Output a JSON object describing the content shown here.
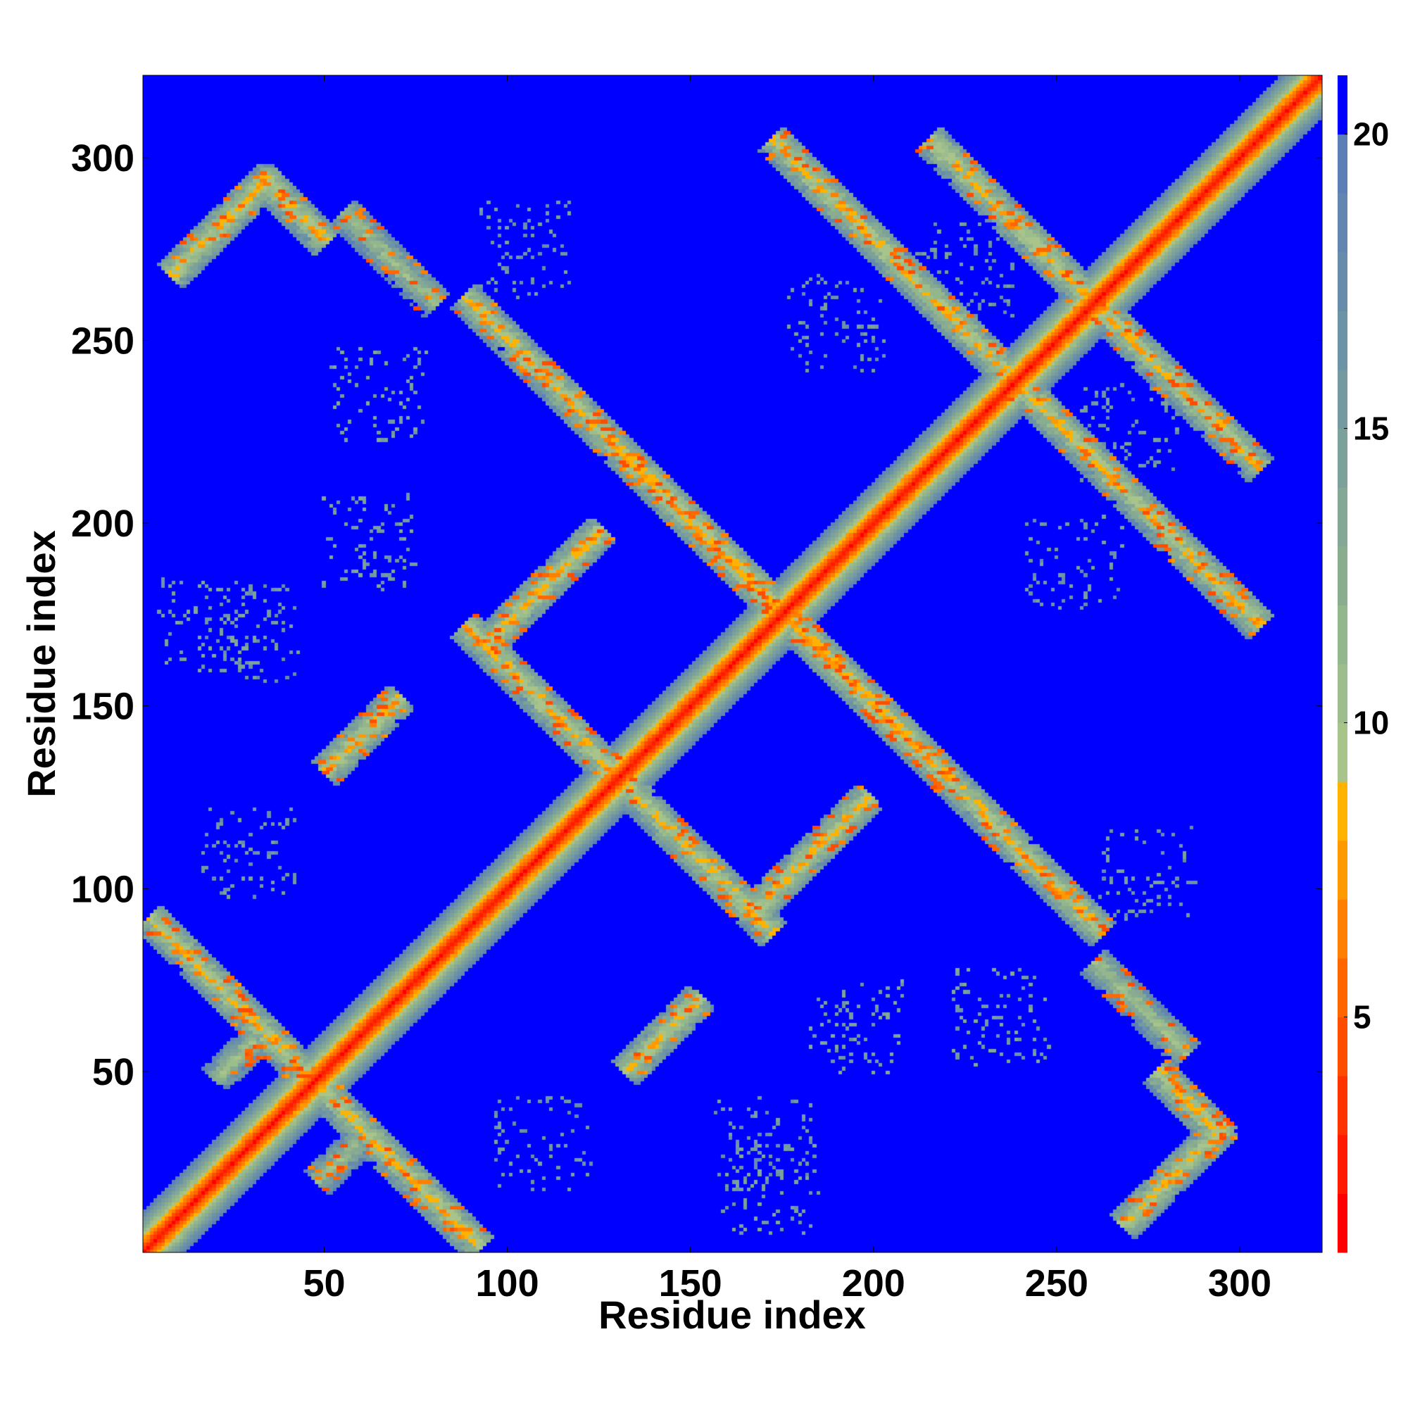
{
  "chart_data": {
    "type": "heatmap",
    "title": "",
    "xlabel": "Residue index",
    "ylabel": "Residue index",
    "n_residues": 322,
    "xlim": [
      1,
      322
    ],
    "ylim": [
      1,
      322
    ],
    "x_ticks": [
      50,
      100,
      150,
      200,
      250,
      300
    ],
    "y_ticks": [
      50,
      100,
      150,
      200,
      250,
      300
    ],
    "colorbar": {
      "ticks": [
        5,
        10,
        15,
        20
      ],
      "range": [
        1,
        21
      ],
      "levels": [
        {
          "lo": 1,
          "hi": 2,
          "color": "#ff0000"
        },
        {
          "lo": 2,
          "hi": 3,
          "color": "#ff1a00"
        },
        {
          "lo": 3,
          "hi": 4,
          "color": "#ff3300"
        },
        {
          "lo": 4,
          "hi": 5,
          "color": "#ff4d00"
        },
        {
          "lo": 5,
          "hi": 6,
          "color": "#ff6600"
        },
        {
          "lo": 6,
          "hi": 7,
          "color": "#ff8000"
        },
        {
          "lo": 7,
          "hi": 8,
          "color": "#ff9900"
        },
        {
          "lo": 8,
          "hi": 9,
          "color": "#ffb300"
        },
        {
          "lo": 9,
          "hi": 10,
          "color": "#a9c48a"
        },
        {
          "lo": 10,
          "hi": 11,
          "color": "#9cbd8c"
        },
        {
          "lo": 11,
          "hi": 12,
          "color": "#94b68c"
        },
        {
          "lo": 12,
          "hi": 13,
          "color": "#8bad8f"
        },
        {
          "lo": 13,
          "hi": 14,
          "color": "#84a895"
        },
        {
          "lo": 14,
          "hi": 15,
          "color": "#7ca09a"
        },
        {
          "lo": 15,
          "hi": 16,
          "color": "#7499a0"
        },
        {
          "lo": 16,
          "hi": 17,
          "color": "#6d93a6"
        },
        {
          "lo": 17,
          "hi": 18,
          "color": "#678cab"
        },
        {
          "lo": 18,
          "hi": 19,
          "color": "#6286b0"
        },
        {
          "lo": 19,
          "hi": 20,
          "color": "#5c80b6"
        },
        {
          "lo": 20,
          "hi": 21,
          "color": "#0000ff"
        }
      ]
    },
    "background_value": 21,
    "diagonal_band": {
      "core_value": 2,
      "halfwidth": 11
    },
    "contact_bands": [
      {
        "kind": "anti",
        "start": [
          2,
          92
        ],
        "end": [
          92,
          2
        ],
        "center_value": 12
      },
      {
        "kind": "anti",
        "start": [
          88,
          172
        ],
        "end": [
          172,
          88
        ],
        "center_value": 12
      },
      {
        "kind": "anti",
        "start": [
          130,
          220
        ],
        "end": [
          220,
          130
        ],
        "center_value": 12
      },
      {
        "kind": "anti",
        "start": [
          88,
          262
        ],
        "end": [
          262,
          88
        ],
        "center_value": 12
      },
      {
        "kind": "anti",
        "start": [
          172,
          305
        ],
        "end": [
          305,
          172
        ],
        "center_value": 12
      },
      {
        "kind": "anti",
        "start": [
          215,
          305
        ],
        "end": [
          305,
          215
        ],
        "center_value": 12
      },
      {
        "kind": "anti",
        "start": [
          32,
          295
        ],
        "end": [
          50,
          277
        ],
        "center_value": 12
      },
      {
        "kind": "anti",
        "start": [
          277,
          50
        ],
        "end": [
          295,
          32
        ],
        "center_value": 12
      },
      {
        "kind": "anti",
        "start": [
          55,
          285
        ],
        "end": [
          80,
          260
        ],
        "center_value": 14
      },
      {
        "kind": "anti",
        "start": [
          260,
          80
        ],
        "end": [
          285,
          55
        ],
        "center_value": 14
      },
      {
        "kind": "parallel",
        "start": [
          8,
          268
        ],
        "end": [
          35,
          295
        ],
        "center_value": 12
      },
      {
        "kind": "parallel",
        "start": [
          268,
          8
        ],
        "end": [
          295,
          35
        ],
        "center_value": 12
      },
      {
        "kind": "parallel",
        "start": [
          50,
          132
        ],
        "end": [
          70,
          152
        ],
        "center_value": 12
      },
      {
        "kind": "parallel",
        "start": [
          132,
          50
        ],
        "end": [
          152,
          70
        ],
        "center_value": 12
      },
      {
        "kind": "parallel",
        "start": [
          95,
          168
        ],
        "end": [
          125,
          198
        ],
        "center_value": 12
      },
      {
        "kind": "parallel",
        "start": [
          168,
          95
        ],
        "end": [
          198,
          125
        ],
        "center_value": 12
      },
      {
        "kind": "parallel",
        "start": [
          48,
          20
        ],
        "end": [
          58,
          30
        ],
        "center_value": 14
      },
      {
        "kind": "parallel",
        "start": [
          20,
          48
        ],
        "end": [
          30,
          58
        ],
        "center_value": 14
      }
    ],
    "sparse_patches": [
      {
        "x": 65,
        "y": 235,
        "value": 15
      },
      {
        "x": 235,
        "y": 65,
        "value": 15
      },
      {
        "x": 62,
        "y": 195,
        "value": 15
      },
      {
        "x": 195,
        "y": 62,
        "value": 15
      },
      {
        "x": 18,
        "y": 172,
        "value": 15
      },
      {
        "x": 172,
        "y": 18,
        "value": 15
      },
      {
        "x": 105,
        "y": 275,
        "value": 16
      },
      {
        "x": 275,
        "y": 105,
        "value": 16
      },
      {
        "x": 170,
        "y": 30,
        "value": 16
      },
      {
        "x": 30,
        "y": 170,
        "value": 16
      },
      {
        "x": 270,
        "y": 225,
        "value": 16
      },
      {
        "x": 225,
        "y": 270,
        "value": 16
      },
      {
        "x": 255,
        "y": 190,
        "value": 16
      },
      {
        "x": 190,
        "y": 255,
        "value": 16
      },
      {
        "x": 110,
        "y": 30,
        "value": 16
      },
      {
        "x": 30,
        "y": 110,
        "value": 16
      }
    ]
  }
}
